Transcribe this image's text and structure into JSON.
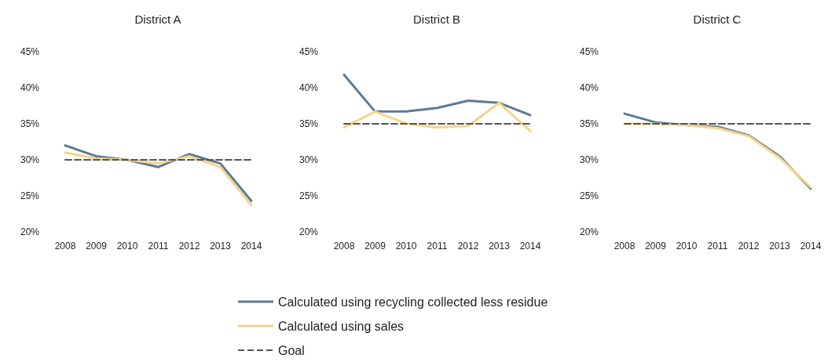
{
  "chart_data": [
    {
      "type": "line",
      "title": "District A",
      "categories": [
        "2008",
        "2009",
        "2010",
        "2011",
        "2012",
        "2013",
        "2014"
      ],
      "ylim": [
        20,
        45
      ],
      "yticks": [
        {
          "value": 20,
          "label": "20%"
        },
        {
          "value": 25,
          "label": "25%"
        },
        {
          "value": 30,
          "label": "30%"
        },
        {
          "value": 35,
          "label": "35%"
        },
        {
          "value": 40,
          "label": "40%"
        },
        {
          "value": 45,
          "label": "45%"
        }
      ],
      "legend": "bottom",
      "series": [
        {
          "name": "Calculated using recycling collected less residue",
          "color": "#5b7a95",
          "values": [
            32,
            30.5,
            30,
            29,
            30.8,
            29.5,
            24.3
          ]
        },
        {
          "name": "Calculated using sales",
          "color": "#f5d58a",
          "values": [
            31,
            30.2,
            30,
            29.5,
            30.5,
            29,
            23.7
          ]
        },
        {
          "name": "Goal",
          "color": "#555555",
          "line_style": "dashed",
          "values": [
            30,
            30,
            30,
            30,
            30,
            30,
            30
          ]
        }
      ]
    },
    {
      "type": "line",
      "title": "District B",
      "categories": [
        "2008",
        "2009",
        "2010",
        "2011",
        "2012",
        "2013",
        "2014"
      ],
      "ylim": [
        20,
        45
      ],
      "yticks": [
        {
          "value": 20,
          "label": "20%"
        },
        {
          "value": 25,
          "label": "25%"
        },
        {
          "value": 30,
          "label": "30%"
        },
        {
          "value": 35,
          "label": "35%"
        },
        {
          "value": 40,
          "label": "40%"
        },
        {
          "value": 45,
          "label": "45%"
        }
      ],
      "series": [
        {
          "color": "#5b7a95",
          "values": [
            41.8,
            36.7,
            36.7,
            37.2,
            38.2,
            37.9,
            36.2
          ]
        },
        {
          "color": "#f5d58a",
          "values": [
            34.5,
            36.7,
            35,
            34.5,
            34.7,
            37.9,
            34
          ]
        },
        {
          "color": "#555555",
          "line_style": "dashed",
          "values": [
            35,
            35,
            35,
            35,
            35,
            35,
            35
          ]
        }
      ]
    },
    {
      "type": "line",
      "title": "District C",
      "categories": [
        "2008",
        "2009",
        "2010",
        "2011",
        "2012",
        "2013",
        "2014"
      ],
      "ylim": [
        20,
        45
      ],
      "yticks": [
        {
          "value": 20,
          "label": "20%"
        },
        {
          "value": 25,
          "label": "25%"
        },
        {
          "value": 30,
          "label": "30%"
        },
        {
          "value": 35,
          "label": "35%"
        },
        {
          "value": 40,
          "label": "40%"
        },
        {
          "value": 45,
          "label": "45%"
        }
      ],
      "series": [
        {
          "color": "#5b7a95",
          "values": [
            36.4,
            35.2,
            34.8,
            34.6,
            33.4,
            30.5,
            26
          ]
        },
        {
          "color": "#f5d58a",
          "values": [
            35,
            35,
            34.8,
            34.4,
            33.3,
            30.3,
            26.2
          ]
        },
        {
          "color": "#555555",
          "line_style": "dashed",
          "values": [
            35,
            35,
            35,
            35,
            35,
            35,
            35
          ]
        }
      ]
    }
  ]
}
